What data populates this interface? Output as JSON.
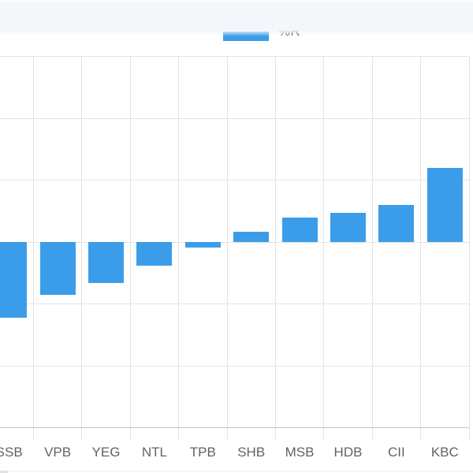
{
  "page": {
    "background_color": "#ffffff",
    "top_band_color": "#f3f7fb"
  },
  "legend": {
    "label": "%R",
    "swatch_color": "#3b9de9"
  },
  "chart_data": {
    "type": "bar",
    "title": "",
    "xlabel": "",
    "ylabel": "",
    "categories": [
      "SSB",
      "VPB",
      "YEG",
      "NTL",
      "TPB",
      "SHB",
      "MSB",
      "HDB",
      "CII",
      "KBC"
    ],
    "series": [
      {
        "name": "%R",
        "values": [
          -1.22,
          -0.85,
          -0.66,
          -0.38,
          -0.09,
          0.17,
          0.4,
          0.48,
          0.6,
          1.2
        ]
      }
    ],
    "ylim": [
      -3,
      3
    ],
    "y_step": 1,
    "y_tick_labels_visible": false,
    "grid": true,
    "legend_position": "top",
    "bar_color": "#3b9de9",
    "grid_color": "#e3e3e3",
    "axis_line_color": "#c6c6c6",
    "tick_label_color": "#5f6368",
    "notes_left_category_clipped": "SSB bar and label partially cut off at left edge of screenshot"
  }
}
